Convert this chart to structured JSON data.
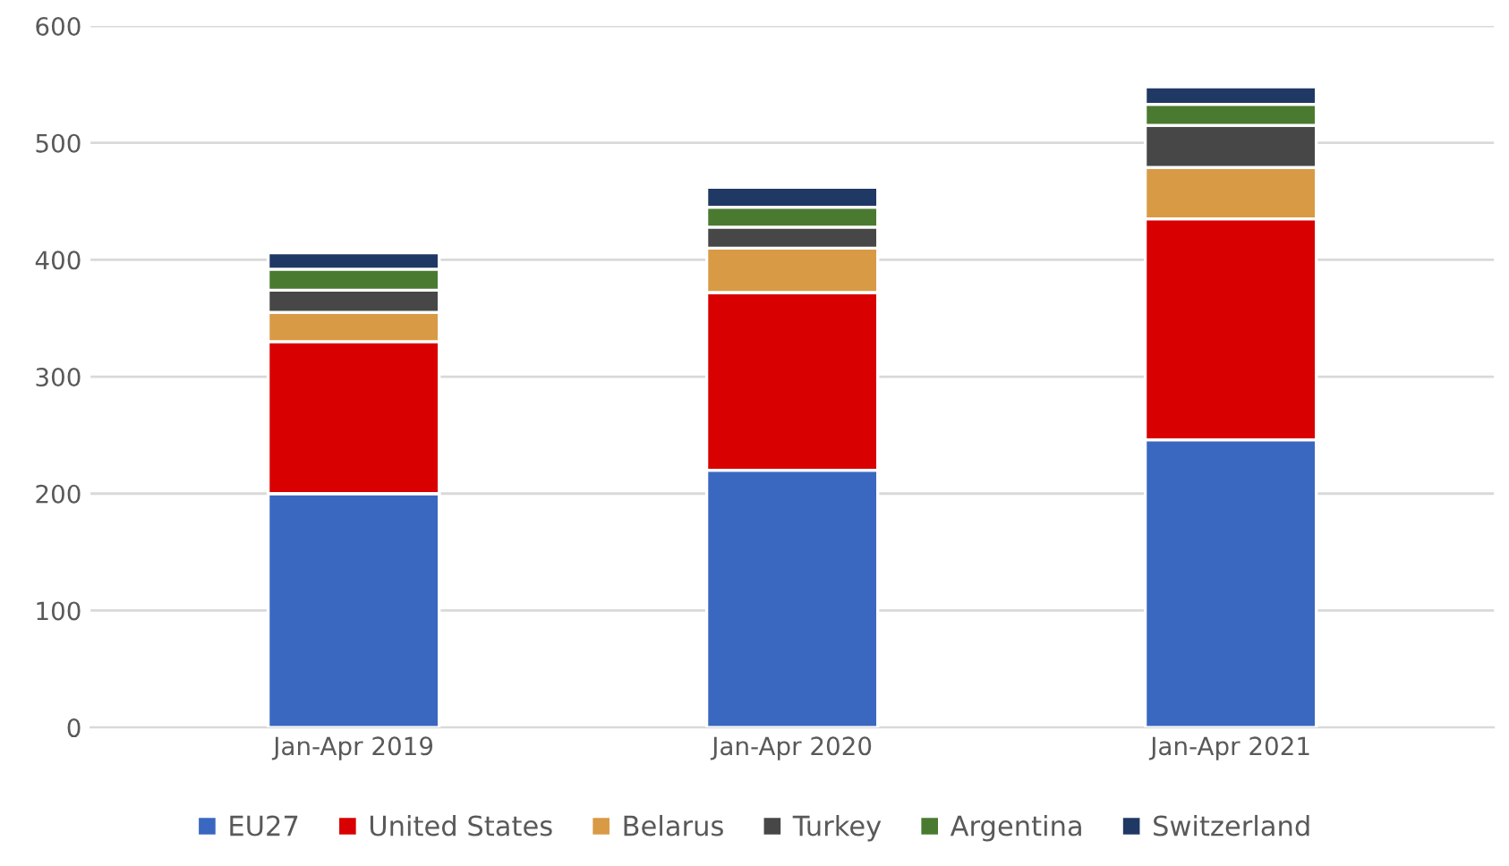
{
  "chart_data": {
    "type": "bar",
    "stacked": true,
    "categories": [
      "Jan-Apr 2019",
      "Jan-Apr 2020",
      "Jan-Apr 2021"
    ],
    "series": [
      {
        "name": "EU27",
        "color": "#3a68c0",
        "values": [
          200,
          220,
          246
        ]
      },
      {
        "name": "United States",
        "color": "#d80000",
        "values": [
          130,
          152,
          189
        ]
      },
      {
        "name": "Belarus",
        "color": "#d99a45",
        "values": [
          25,
          38,
          44
        ]
      },
      {
        "name": "Turkey",
        "color": "#474747",
        "values": [
          19,
          18,
          36
        ]
      },
      {
        "name": "Argentina",
        "color": "#4a7a30",
        "values": [
          18,
          17,
          18
        ]
      },
      {
        "name": "Switzerland",
        "color": "#203864",
        "values": [
          14,
          17,
          15
        ]
      }
    ],
    "ylim": [
      0,
      600
    ],
    "yticks": [
      0,
      100,
      200,
      300,
      400,
      500,
      600
    ],
    "grid": "y",
    "legend": "bottom"
  }
}
